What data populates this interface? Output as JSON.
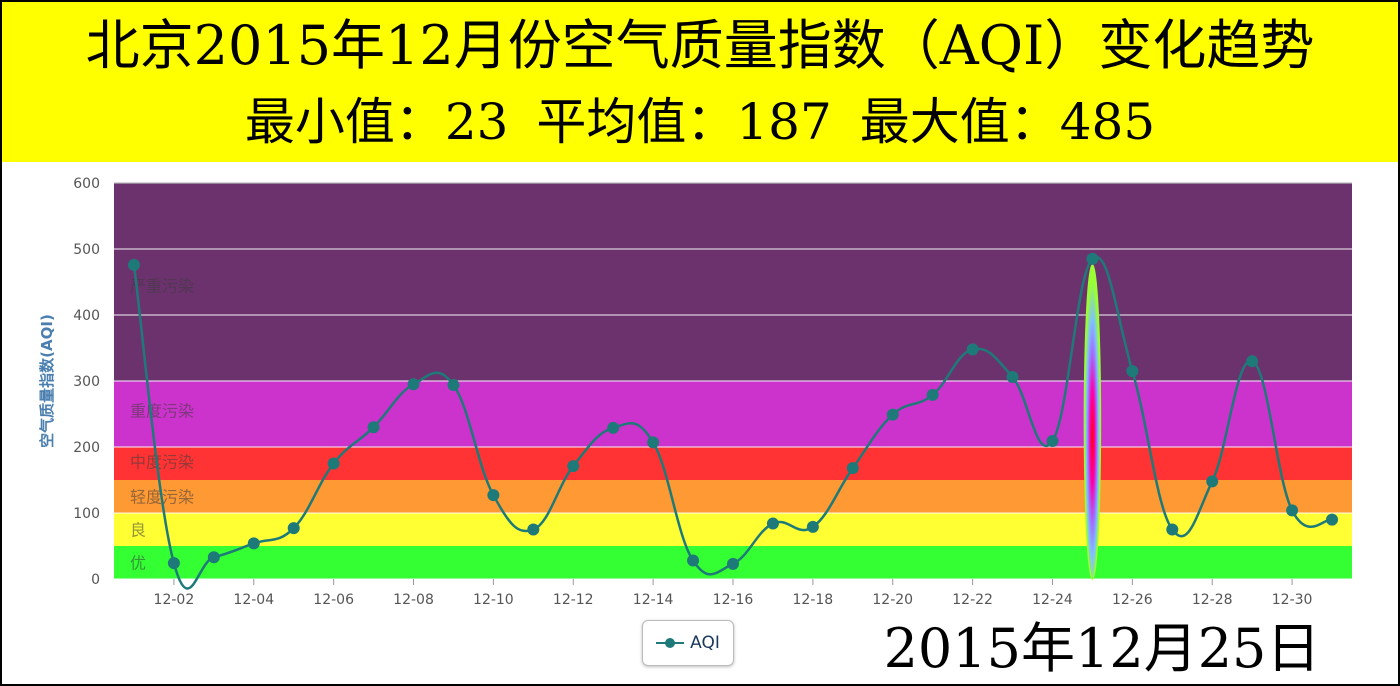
{
  "header": {
    "title": "北京2015年12月份空气质量指数（AQI）变化趋势",
    "min_label": "最小值：23",
    "avg_label": "平均值：187",
    "max_label": "最大值：485"
  },
  "legend": {
    "label": "AQI"
  },
  "highlight_date": "2015年12月25日",
  "colors": {
    "line": "#1e7a78",
    "axis_title": "#4a7fb0",
    "header_bg": "#ffff00"
  },
  "chart_data": {
    "type": "line",
    "title": "北京2015年12月份空气质量指数（AQI）变化趋势",
    "ylabel": "空气质量指数(AQI)",
    "xlabel": "",
    "ylim": [
      0,
      600
    ],
    "yticks": [
      0,
      100,
      200,
      300,
      400,
      500,
      600
    ],
    "xtick_labels": [
      "12-02",
      "12-04",
      "12-06",
      "12-08",
      "12-10",
      "12-12",
      "12-14",
      "12-16",
      "12-18",
      "12-20",
      "12-22",
      "12-24",
      "12-26",
      "12-28",
      "12-30"
    ],
    "x": [
      "12-01",
      "12-02",
      "12-03",
      "12-04",
      "12-05",
      "12-06",
      "12-07",
      "12-08",
      "12-09",
      "12-10",
      "12-11",
      "12-12",
      "12-13",
      "12-14",
      "12-15",
      "12-16",
      "12-17",
      "12-18",
      "12-19",
      "12-20",
      "12-21",
      "12-22",
      "12-23",
      "12-24",
      "12-25",
      "12-26",
      "12-27",
      "12-28",
      "12-29",
      "12-30",
      "12-31"
    ],
    "series": [
      {
        "name": "AQI",
        "values": [
          476,
          24,
          33,
          54,
          77,
          175,
          230,
          295,
          294,
          127,
          75,
          171,
          229,
          207,
          28,
          23,
          84,
          79,
          168,
          249,
          279,
          348,
          306,
          209,
          485,
          315,
          75,
          148,
          330,
          104,
          90
        ]
      }
    ],
    "bands": [
      {
        "label": "优",
        "from": 0,
        "to": 50,
        "color": "#33ff33"
      },
      {
        "label": "良",
        "from": 50,
        "to": 100,
        "color": "#ffff33"
      },
      {
        "label": "轻度污染",
        "from": 100,
        "to": 150,
        "color": "#ff9933"
      },
      {
        "label": "中度污染",
        "from": 150,
        "to": 200,
        "color": "#ff3333"
      },
      {
        "label": "重度污染",
        "from": 200,
        "to": 300,
        "color": "#cc33cc"
      },
      {
        "label": "严重污染",
        "from": 300,
        "to": 600,
        "color": "#6b326e"
      }
    ],
    "highlight_x": "12-25",
    "grid": true,
    "legend_position": "bottom-center"
  }
}
